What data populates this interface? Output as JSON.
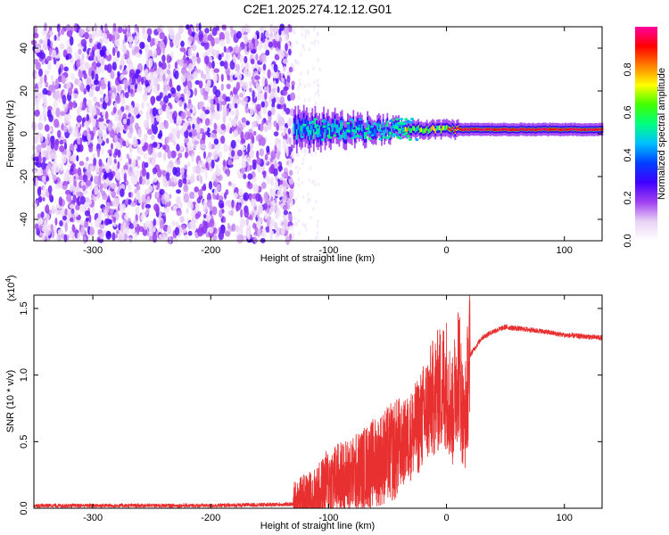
{
  "title": "C2E1.2025.274.12.12.G01",
  "chart_data": [
    {
      "type": "heatmap",
      "name": "spectrogram",
      "xlabel": "Height of straight line (km)",
      "ylabel": "Frequency (Hz)",
      "xlim": [
        -350,
        132
      ],
      "ylim": [
        -50,
        50
      ],
      "xticks": [
        -300,
        -200,
        -100,
        0,
        100
      ],
      "xtick_labels": [
        "-300",
        "-200",
        "-100",
        "0",
        "100"
      ],
      "yticks": [
        -40,
        -20,
        0,
        20,
        40
      ],
      "ytick_labels": [
        "-40",
        "-20",
        "0",
        "20",
        "40"
      ],
      "noise_region_end_km": -130,
      "signal_center_hz": 2,
      "colorbar": {
        "label": "Normalized spectral amplitude",
        "range": [
          0.0,
          1.0
        ],
        "ticks": [
          0.0,
          0.2,
          0.4,
          0.6,
          0.8
        ],
        "tick_labels": [
          "0.0",
          "0.2",
          "0.4",
          "0.6",
          "0.8"
        ],
        "colors": [
          "#ffffff",
          "#e9d2f5",
          "#a040f0",
          "#4000ff",
          "#0040ff",
          "#00c0ff",
          "#00ff80",
          "#40ff00",
          "#ffff00",
          "#ff8000",
          "#ff0000",
          "#ff00a0"
        ]
      }
    },
    {
      "type": "line",
      "name": "snr",
      "xlabel": "Height of straight line (km)",
      "ylabel": "SNR (10 * v/v)",
      "multiplier_label": "(x10",
      "multiplier_exp": "4",
      "multiplier_close": ")",
      "xlim": [
        -350,
        132
      ],
      "ylim": [
        0,
        1.6
      ],
      "xticks": [
        -300,
        -200,
        -100,
        0,
        100
      ],
      "xtick_labels": [
        "-300",
        "-200",
        "-100",
        "0",
        "100"
      ],
      "yticks": [
        0.0,
        0.5,
        1.0,
        1.5
      ],
      "ytick_labels": [
        "0.0",
        "0.5",
        "1.0",
        "1.5"
      ],
      "color": "#e83030",
      "profile": {
        "x": [
          -350,
          -300,
          -200,
          -130,
          -110,
          -100,
          -80,
          -60,
          -40,
          -25,
          -10,
          0,
          5,
          10,
          15,
          20,
          30,
          40,
          50,
          60,
          80,
          100,
          132
        ],
        "y": [
          0.02,
          0.02,
          0.02,
          0.03,
          0.1,
          0.2,
          0.25,
          0.35,
          0.45,
          0.6,
          0.85,
          0.95,
          0.7,
          1.1,
          0.6,
          1.15,
          1.28,
          1.33,
          1.36,
          1.35,
          1.33,
          1.3,
          1.28
        ]
      }
    }
  ]
}
